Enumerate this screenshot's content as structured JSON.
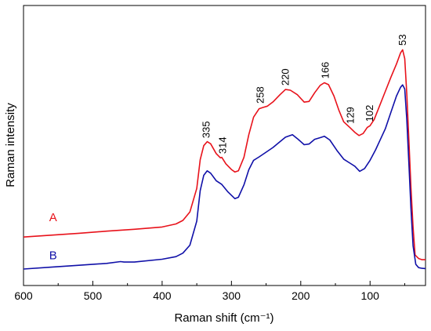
{
  "chart_data": {
    "type": "line",
    "title": "",
    "xlabel": "Raman shift (cm⁻¹)",
    "ylabel": "Raman intensity",
    "xlim": [
      600,
      20
    ],
    "x_reversed": true,
    "xticks": [
      600,
      500,
      400,
      300,
      200,
      100
    ],
    "y_tick_labels_shown": false,
    "ylim": [
      0,
      1
    ],
    "grid": false,
    "legend": "inline labels at left of each curve",
    "series": [
      {
        "name": "A",
        "color": "#e8121b",
        "label_x": 563,
        "label_y": 0.205,
        "points": [
          [
            600,
            0.137
          ],
          [
            560,
            0.145
          ],
          [
            520,
            0.153
          ],
          [
            480,
            0.162
          ],
          [
            440,
            0.17
          ],
          [
            400,
            0.18
          ],
          [
            380,
            0.193
          ],
          [
            370,
            0.208
          ],
          [
            360,
            0.244
          ],
          [
            350,
            0.345
          ],
          [
            345,
            0.468
          ],
          [
            340,
            0.528
          ],
          [
            335,
            0.545
          ],
          [
            330,
            0.536
          ],
          [
            322,
            0.494
          ],
          [
            316,
            0.476
          ],
          [
            314,
            0.478
          ],
          [
            308,
            0.45
          ],
          [
            300,
            0.426
          ],
          [
            295,
            0.415
          ],
          [
            290,
            0.42
          ],
          [
            282,
            0.478
          ],
          [
            275,
            0.575
          ],
          [
            268,
            0.65
          ],
          [
            260,
            0.686
          ],
          [
            255,
            0.691
          ],
          [
            248,
            0.697
          ],
          [
            240,
            0.715
          ],
          [
            230,
            0.746
          ],
          [
            222,
            0.768
          ],
          [
            215,
            0.765
          ],
          [
            205,
            0.746
          ],
          [
            195,
            0.714
          ],
          [
            188,
            0.717
          ],
          [
            180,
            0.754
          ],
          [
            172,
            0.786
          ],
          [
            166,
            0.797
          ],
          [
            160,
            0.789
          ],
          [
            152,
            0.74
          ],
          [
            145,
            0.68
          ],
          [
            138,
            0.63
          ],
          [
            129,
            0.605
          ],
          [
            122,
            0.585
          ],
          [
            116,
            0.571
          ],
          [
            110,
            0.58
          ],
          [
            104,
            0.606
          ],
          [
            100,
            0.613
          ],
          [
            94,
            0.64
          ],
          [
            86,
            0.7
          ],
          [
            78,
            0.76
          ],
          [
            70,
            0.82
          ],
          [
            62,
            0.877
          ],
          [
            56,
            0.925
          ],
          [
            53,
            0.938
          ],
          [
            50,
            0.9
          ],
          [
            47,
            0.75
          ],
          [
            44,
            0.55
          ],
          [
            41,
            0.35
          ],
          [
            38,
            0.18
          ],
          [
            35,
            0.06
          ],
          [
            30,
            0.045
          ],
          [
            25,
            0.04
          ],
          [
            20,
            0.04
          ]
        ]
      },
      {
        "name": "B",
        "color": "#1010a8",
        "label_x": 563,
        "label_y": 0.042,
        "points": [
          [
            600,
            0.0
          ],
          [
            560,
            0.008
          ],
          [
            520,
            0.016
          ],
          [
            480,
            0.024
          ],
          [
            460,
            0.032
          ],
          [
            455,
            0.03
          ],
          [
            440,
            0.03
          ],
          [
            400,
            0.042
          ],
          [
            380,
            0.053
          ],
          [
            370,
            0.068
          ],
          [
            360,
            0.102
          ],
          [
            350,
            0.205
          ],
          [
            345,
            0.336
          ],
          [
            340,
            0.401
          ],
          [
            335,
            0.42
          ],
          [
            330,
            0.41
          ],
          [
            322,
            0.378
          ],
          [
            314,
            0.362
          ],
          [
            305,
            0.33
          ],
          [
            295,
            0.301
          ],
          [
            290,
            0.307
          ],
          [
            282,
            0.36
          ],
          [
            275,
            0.425
          ],
          [
            268,
            0.465
          ],
          [
            260,
            0.48
          ],
          [
            250,
            0.5
          ],
          [
            240,
            0.52
          ],
          [
            230,
            0.545
          ],
          [
            222,
            0.564
          ],
          [
            212,
            0.575
          ],
          [
            205,
            0.558
          ],
          [
            195,
            0.532
          ],
          [
            188,
            0.535
          ],
          [
            180,
            0.555
          ],
          [
            172,
            0.562
          ],
          [
            166,
            0.568
          ],
          [
            158,
            0.552
          ],
          [
            148,
            0.508
          ],
          [
            138,
            0.47
          ],
          [
            129,
            0.453
          ],
          [
            122,
            0.44
          ],
          [
            115,
            0.418
          ],
          [
            108,
            0.43
          ],
          [
            100,
            0.465
          ],
          [
            92,
            0.51
          ],
          [
            85,
            0.555
          ],
          [
            78,
            0.6
          ],
          [
            70,
            0.67
          ],
          [
            62,
            0.74
          ],
          [
            56,
            0.778
          ],
          [
            53,
            0.788
          ],
          [
            50,
            0.77
          ],
          [
            47,
            0.64
          ],
          [
            44,
            0.45
          ],
          [
            41,
            0.26
          ],
          [
            38,
            0.1
          ],
          [
            34,
            0.02
          ],
          [
            30,
            0.006
          ],
          [
            25,
            0.003
          ],
          [
            20,
            0.002
          ]
        ]
      }
    ],
    "annotations": [
      {
        "text": "335",
        "x": 336,
        "y": 0.56
      },
      {
        "text": "314",
        "x": 312,
        "y": 0.493
      },
      {
        "text": "258",
        "x": 258,
        "y": 0.708
      },
      {
        "text": "220",
        "x": 222,
        "y": 0.785
      },
      {
        "text": "166",
        "x": 164,
        "y": 0.814
      },
      {
        "text": "129",
        "x": 128,
        "y": 0.621
      },
      {
        "text": "102",
        "x": 100,
        "y": 0.63
      },
      {
        "text": "53",
        "x": 53,
        "y": 0.956
      }
    ]
  }
}
